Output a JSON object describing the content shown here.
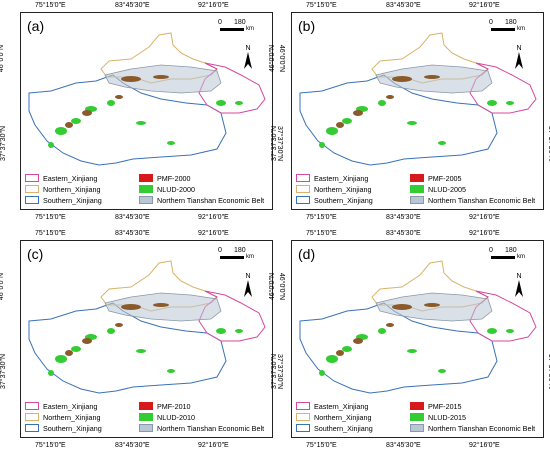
{
  "ticks": {
    "lon": [
      "75°15′0″E",
      "83°45′30″E",
      "92°16′0″E"
    ],
    "lat": [
      "46°0′0″N",
      "37°37′30″N"
    ]
  },
  "scale": {
    "zero": "0",
    "value": "180",
    "unit": "km"
  },
  "north_label": "N",
  "colors": {
    "eastern": "#d4499f",
    "northern": "#d9b36a",
    "southern": "#3a72b8",
    "pmf": "#d7191c",
    "nlud": "#33cc33",
    "belt": "#b9c6d6",
    "pmf_land": "#8a5a2b"
  },
  "legend_static": {
    "eastern": "Eastern_Xinjiang",
    "northern": "Northern_Xinjiang",
    "southern": "Southern_Xinjiang",
    "belt": "Northern Tianshan Economic Belt"
  },
  "panels": [
    {
      "label": "(a)",
      "pmf": "PMF-2000",
      "nlud": "NLUD-2000"
    },
    {
      "label": "(b)",
      "pmf": "PMF-2005",
      "nlud": "NLUD-2005"
    },
    {
      "label": "(c)",
      "pmf": "PMF-2010",
      "nlud": "NLUD-2010"
    },
    {
      "label": "(d)",
      "pmf": "PMF-2015",
      "nlud": "NLUD-2015"
    }
  ]
}
